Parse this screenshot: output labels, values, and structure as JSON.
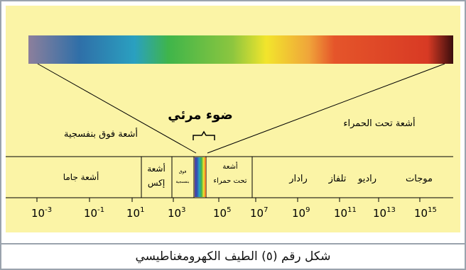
{
  "diagram": {
    "visible_light_label": "ضوء مرئي",
    "ultraviolet_label": "أشعة فوق بنفسجية",
    "infrared_label": "أشعة تحت الحمراء",
    "bands": [
      {
        "lines": [
          "أشعة جاما"
        ]
      },
      {
        "lines": [
          "أشعة",
          "إكس"
        ]
      },
      {
        "lines": [
          "فوق",
          "بنفسجية"
        ]
      },
      {
        "lines": [
          "أشعة",
          "تحت حمراء"
        ]
      },
      {
        "lines": [
          "رادار"
        ]
      },
      {
        "lines": [
          "تلفاز"
        ]
      },
      {
        "lines": [
          "راديو"
        ]
      },
      {
        "lines": [
          "موجات"
        ]
      }
    ],
    "ticks": [
      {
        "base": "10",
        "exp": "-3"
      },
      {
        "base": "10",
        "exp": "-1"
      },
      {
        "base": "10",
        "exp": "1"
      },
      {
        "base": "10",
        "exp": "3"
      },
      {
        "base": "10",
        "exp": "5"
      },
      {
        "base": "10",
        "exp": "7"
      },
      {
        "base": "10",
        "exp": "9"
      },
      {
        "base": "10",
        "exp": "11"
      },
      {
        "base": "10",
        "exp": "13"
      },
      {
        "base": "10",
        "exp": "15"
      }
    ],
    "spectrum_colors": [
      "#8c7f9c",
      "#2f6fa8",
      "#2aa0c0",
      "#3fb54a",
      "#bfd23a",
      "#f2e52c",
      "#f0a53a",
      "#e5552a",
      "#d83a24",
      "#3a0d0d"
    ]
  },
  "caption": "شكل رقم (٥) الطيف الكهرومغناطيسي"
}
